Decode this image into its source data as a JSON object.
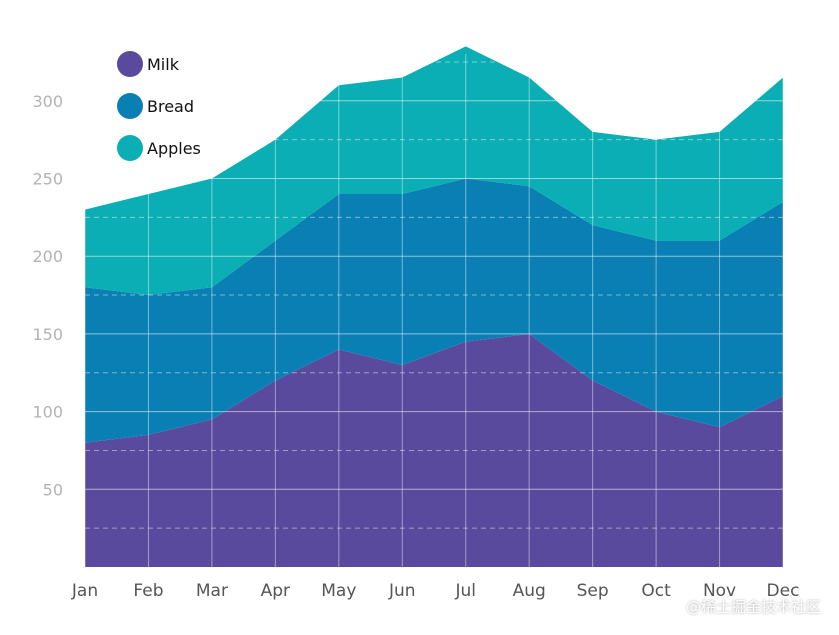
{
  "chart_data": {
    "type": "area",
    "stacked": true,
    "categories": [
      "Jan",
      "Feb",
      "Mar",
      "Apr",
      "May",
      "Jun",
      "Jul",
      "Aug",
      "Sep",
      "Oct",
      "Nov",
      "Dec"
    ],
    "series": [
      {
        "name": "Milk",
        "color": "#5a4a9e",
        "values": [
          80,
          85,
          95,
          120,
          140,
          130,
          145,
          150,
          120,
          100,
          90,
          110
        ]
      },
      {
        "name": "Bread",
        "color": "#0a7fb4",
        "values": [
          100,
          90,
          85,
          90,
          100,
          110,
          105,
          95,
          100,
          110,
          120,
          125
        ]
      },
      {
        "name": "Apples",
        "color": "#0aaeb4",
        "values": [
          50,
          65,
          70,
          65,
          70,
          75,
          85,
          70,
          60,
          65,
          70,
          80
        ]
      }
    ],
    "y_ticks": [
      50,
      100,
      150,
      200,
      250,
      300
    ],
    "ylim": [
      0,
      330
    ],
    "grid": true,
    "legend_position": "top-left"
  },
  "watermark": "@稀土掘金技术社区"
}
